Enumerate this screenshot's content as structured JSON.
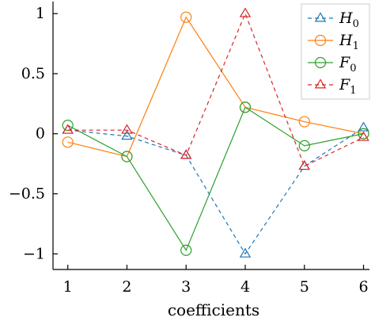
{
  "chart_data": {
    "type": "line",
    "xlabel": "coefficients",
    "ylabel": "",
    "x": [
      1,
      2,
      3,
      4,
      5,
      6
    ],
    "xticks": [
      "1",
      "2",
      "3",
      "4",
      "5",
      "6"
    ],
    "yticks": [
      {
        "value": 1,
        "label": "1"
      },
      {
        "value": 0.5,
        "label": "0.5"
      },
      {
        "value": 0,
        "label": "0"
      },
      {
        "value": -0.5,
        "label": "−0.5"
      },
      {
        "value": -1,
        "label": "−1"
      }
    ],
    "xlim": [
      0.75,
      6.1
    ],
    "ylim": [
      -1.13,
      1.1
    ],
    "grid": false,
    "legend_position": "top-right",
    "series": [
      {
        "name": "H",
        "sub": "0",
        "marker": "triangle",
        "dashed": true,
        "color": "#1f77b4",
        "values": [
          0.03,
          -0.02,
          -0.18,
          -1.0,
          -0.27,
          0.05
        ]
      },
      {
        "name": "H",
        "sub": "1",
        "marker": "circle",
        "dashed": false,
        "color": "#ff7f0e",
        "values": [
          -0.07,
          -0.19,
          0.97,
          0.22,
          0.1,
          0.0
        ]
      },
      {
        "name": "F",
        "sub": "0",
        "marker": "circle",
        "dashed": false,
        "color": "#2ca02c",
        "values": [
          0.07,
          -0.19,
          -0.97,
          0.22,
          -0.1,
          0.0
        ]
      },
      {
        "name": "F",
        "sub": "1",
        "marker": "triangle",
        "dashed": true,
        "color": "#d62728",
        "values": [
          0.03,
          0.03,
          -0.18,
          1.0,
          -0.27,
          -0.03
        ]
      }
    ]
  }
}
